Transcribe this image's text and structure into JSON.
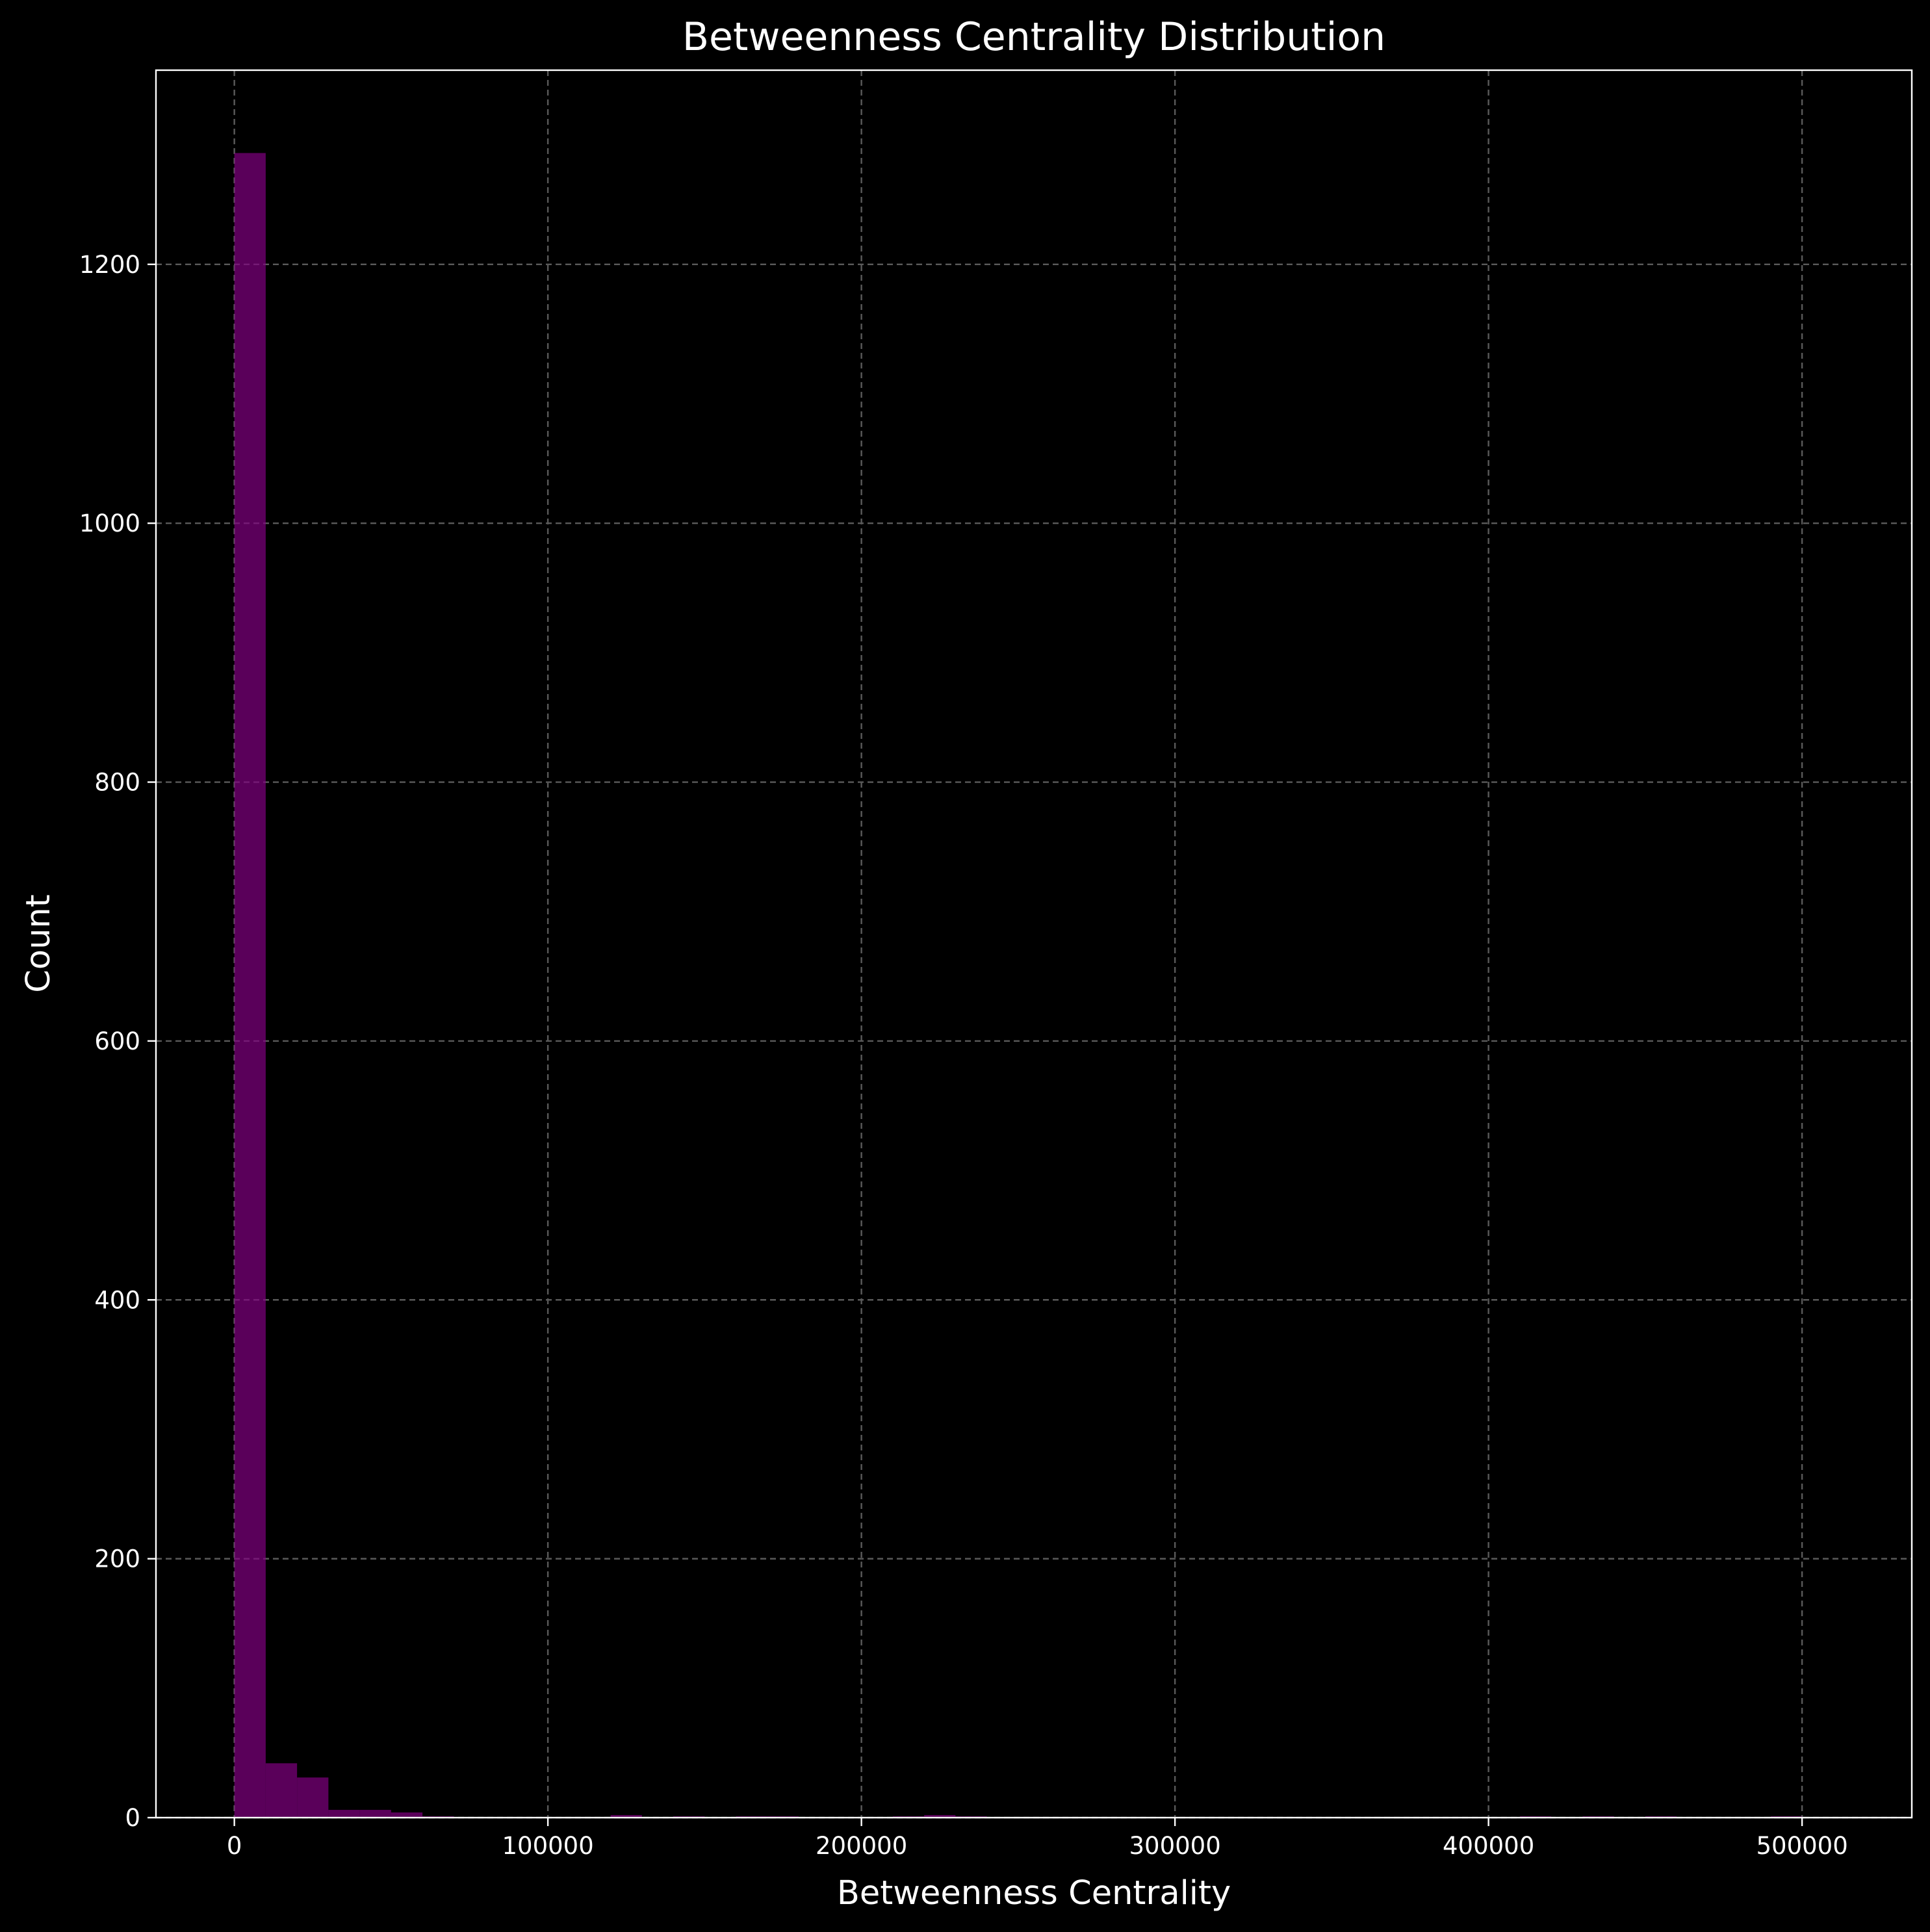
{
  "colors": {
    "background": "#000000",
    "foreground": "#ffffff",
    "grid": "#5a5a5a",
    "bar": "#800080",
    "bar_opacity": 0.7
  },
  "chart_data": {
    "type": "bar",
    "title": "Betweenness Centrality Distribution",
    "xlabel": "Betweenness Centrality",
    "ylabel": "Count",
    "xlim": [
      -25000,
      535000
    ],
    "ylim": [
      0,
      1350
    ],
    "xticks": [
      0,
      100000,
      200000,
      300000,
      400000,
      500000
    ],
    "xtick_labels": [
      "0",
      "100000",
      "200000",
      "300000",
      "400000",
      "500000"
    ],
    "yticks": [
      0,
      200,
      400,
      600,
      800,
      1000,
      1200
    ],
    "ytick_labels": [
      "0",
      "200",
      "400",
      "600",
      "800",
      "1000",
      "1200"
    ],
    "grid": true,
    "bin_width": 10000,
    "bins": [
      {
        "x0": 0,
        "x1": 10000,
        "count": 1286
      },
      {
        "x0": 10000,
        "x1": 20000,
        "count": 42
      },
      {
        "x0": 20000,
        "x1": 30000,
        "count": 31
      },
      {
        "x0": 30000,
        "x1": 40000,
        "count": 6
      },
      {
        "x0": 40000,
        "x1": 50000,
        "count": 6
      },
      {
        "x0": 50000,
        "x1": 60000,
        "count": 4
      },
      {
        "x0": 60000,
        "x1": 70000,
        "count": 1
      },
      {
        "x0": 120000,
        "x1": 130000,
        "count": 2
      },
      {
        "x0": 140000,
        "x1": 150000,
        "count": 1
      },
      {
        "x0": 160000,
        "x1": 170000,
        "count": 1
      },
      {
        "x0": 170000,
        "x1": 180000,
        "count": 1
      },
      {
        "x0": 210000,
        "x1": 220000,
        "count": 1
      },
      {
        "x0": 220000,
        "x1": 230000,
        "count": 2
      },
      {
        "x0": 230000,
        "x1": 240000,
        "count": 1
      },
      {
        "x0": 410000,
        "x1": 420000,
        "count": 1
      },
      {
        "x0": 430000,
        "x1": 440000,
        "count": 1
      },
      {
        "x0": 450000,
        "x1": 460000,
        "count": 1
      },
      {
        "x0": 490000,
        "x1": 500000,
        "count": 1
      }
    ]
  }
}
